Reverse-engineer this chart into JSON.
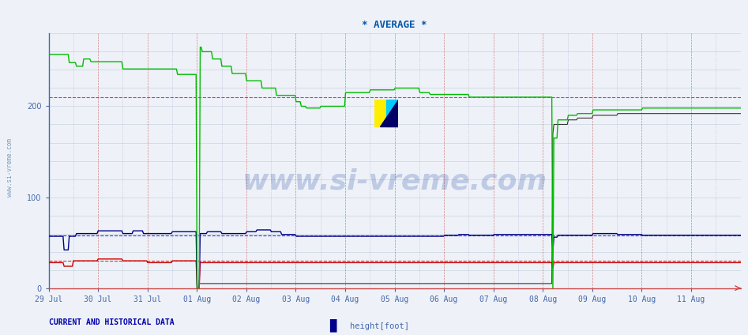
{
  "title": "* AVERAGE *",
  "title_color": "#0055aa",
  "title_fontsize": 9,
  "background_color": "#eef2f8",
  "plot_bg_color": "#eef2f8",
  "xlabel_dates": [
    "29 Jul",
    "30 Jul",
    "31 Jul",
    "01 Aug",
    "02 Aug",
    "03 Aug",
    "04 Aug",
    "05 Aug",
    "06 Aug",
    "07 Aug",
    "08 Aug",
    "09 Aug",
    "10 Aug",
    "11 Aug"
  ],
  "yticks": [
    0,
    100,
    200
  ],
  "ylim": [
    0,
    280
  ],
  "watermark": "www.si-vreme.com",
  "legend_label": "height[foot]",
  "legend_color": "#00008b",
  "current_historical_label": "CURRENT AND HISTORICAL DATA",
  "green_line_color": "#00bb00",
  "green_dashed_color": "#00bb00",
  "blue_line_color": "#00008b",
  "blue_dashed_color": "#3333cc",
  "red_line_color": "#cc0000",
  "red_dashed_color": "#cc3333",
  "black_line_color": "#333333",
  "green_avg": 210,
  "blue_avg": 58,
  "red_avg": 30,
  "n_points": 672
}
